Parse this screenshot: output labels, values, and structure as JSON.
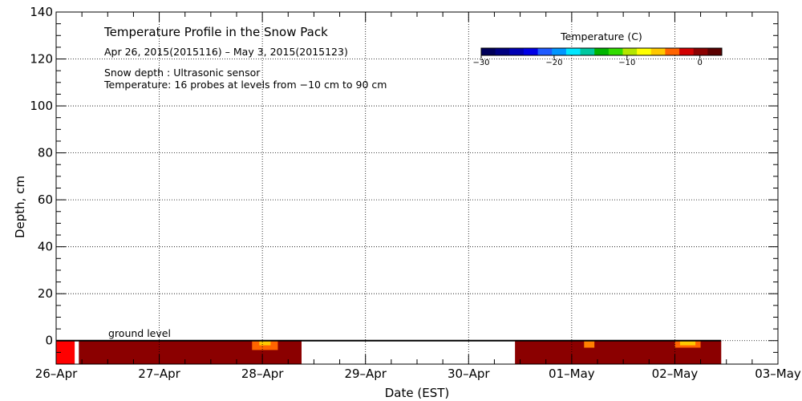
{
  "chart_data": {
    "type": "heatmap",
    "title": "Temperature Profile in the Snow Pack",
    "subtitle": "Apr 26, 2015(2015116) – May  3, 2015(2015123)",
    "notes": [
      "Snow depth : Ultrasonic sensor",
      "Temperature: 16 probes at levels from −10 cm to 90 cm"
    ],
    "annotation": "ground level",
    "xlabel": "Date (EST)",
    "ylabel": "Depth, cm",
    "x_ticks": [
      "26–Apr",
      "27–Apr",
      "28–Apr",
      "29–Apr",
      "30–Apr",
      "01–May",
      "02–May",
      "03–May"
    ],
    "xlim_days": [
      0,
      7
    ],
    "ylim": [
      -10,
      140
    ],
    "y_ticks": [
      0,
      20,
      40,
      60,
      80,
      100,
      120,
      140
    ],
    "grid": true,
    "colorbar": {
      "title": "Temperature (C)",
      "range": [
        -30,
        3
      ],
      "tick_values": [
        -30,
        -20,
        -10,
        0
      ],
      "tick_labels": [
        "−30",
        "−20",
        "−10",
        "0"
      ],
      "colors": [
        "#00005a",
        "#000080",
        "#0000b4",
        "#0000e6",
        "#1e5aff",
        "#0096ff",
        "#00e6ff",
        "#00c8a0",
        "#00b400",
        "#32dc00",
        "#b4e600",
        "#ffff00",
        "#ffc800",
        "#ff6400",
        "#d20000",
        "#8b0000",
        "#5a0000"
      ]
    },
    "ground_level": 0,
    "data_segments": [
      {
        "start_day": 0.0,
        "end_day": 2.38,
        "depth_from": -10,
        "depth_to": 0,
        "base_color": "#8b0000"
      },
      {
        "start_day": 4.45,
        "end_day": 6.45,
        "depth_from": -10,
        "depth_to": 0,
        "base_color": "#8b0000"
      }
    ],
    "warm_patches": [
      {
        "start_day": 0.0,
        "end_day": 0.2,
        "depth_from": -10,
        "depth_to": 0,
        "color": "#ff0000"
      },
      {
        "start_day": 0.18,
        "end_day": 0.22,
        "depth_from": -10,
        "depth_to": 0,
        "color": "#ffffff"
      },
      {
        "start_day": 1.9,
        "end_day": 2.15,
        "depth_from": -4,
        "depth_to": 0,
        "color": "#ff6400"
      },
      {
        "start_day": 1.97,
        "end_day": 2.08,
        "depth_from": -2,
        "depth_to": 0,
        "color": "#ffc800"
      },
      {
        "start_day": 5.12,
        "end_day": 5.22,
        "depth_from": -3,
        "depth_to": 0,
        "color": "#ff8000"
      },
      {
        "start_day": 6.0,
        "end_day": 6.25,
        "depth_from": -3,
        "depth_to": 0,
        "color": "#ff6400"
      },
      {
        "start_day": 6.05,
        "end_day": 6.2,
        "depth_from": -2,
        "depth_to": 0,
        "color": "#ffc800"
      }
    ]
  }
}
